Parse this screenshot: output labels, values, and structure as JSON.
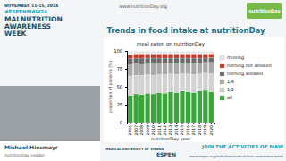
{
  "slide": {
    "event_date": "NOVEMBER 11-15, 2024",
    "hashtag": "#ESPENMAW24",
    "event_title": [
      "MALNUTRITION",
      "AWARENESS",
      "WEEK"
    ],
    "website": "www.nutritionDay.org",
    "logo": "nutritionDay",
    "speaker_name": "Michael Hiesmayr",
    "speaker_role": "nutritionDay Leader",
    "partners": [
      "MEDICAL UNIVERSITY OF VIENNA",
      "ESPEN"
    ],
    "call_to_action": "JOIN THE ACTIVITIES OF MAW",
    "call_to_action_url": "www.espen.org/activities/malnutrition-awareness-week"
  },
  "chart_data": {
    "type": "bar",
    "stacked": true,
    "title": "Trends in food intake at nutritionDay",
    "subtitle": "meal eaten on nutritionDay",
    "x_label": "nutritionDay year",
    "y_label": "proportion of patients (%)",
    "categories": [
      "2006",
      "2007",
      "2008",
      "2009",
      "2010",
      "2011",
      "2012",
      "2013",
      "2014",
      "2015",
      "2016",
      "2017",
      "2018",
      "2019",
      "2020"
    ],
    "series": [
      {
        "name": "all",
        "color": "#3aa53a",
        "values": [
          38,
          40,
          39,
          41,
          40,
          42,
          41,
          43,
          42,
          44,
          43,
          42,
          44,
          45,
          43
        ]
      },
      {
        "name": "1/2",
        "color": "#d2d2d2",
        "values": [
          27,
          26,
          27,
          26,
          26,
          25,
          26,
          25,
          25,
          24,
          25,
          25,
          24,
          24,
          25
        ]
      },
      {
        "name": "1/4",
        "color": "#a9a9a9",
        "values": [
          17,
          17,
          16,
          16,
          17,
          16,
          16,
          15,
          16,
          15,
          15,
          16,
          15,
          15,
          16
        ]
      },
      {
        "name": "nothing allowed",
        "color": "#6b6b6b",
        "values": [
          7,
          7,
          8,
          7,
          7,
          7,
          7,
          7,
          7,
          7,
          7,
          7,
          7,
          6,
          7
        ]
      },
      {
        "name": "nothing not allowed",
        "color": "#c0392b",
        "values": [
          6,
          6,
          6,
          6,
          6,
          6,
          6,
          6,
          6,
          6,
          6,
          6,
          6,
          6,
          5
        ]
      },
      {
        "name": "missing",
        "color": "#e8e8e8",
        "values": [
          5,
          4,
          4,
          4,
          4,
          4,
          4,
          4,
          4,
          4,
          4,
          4,
          4,
          4,
          4
        ]
      }
    ],
    "ylim": [
      0,
      100
    ],
    "yticks": [
      0,
      25,
      50,
      75,
      100
    ],
    "legend": "right",
    "grid": false
  }
}
